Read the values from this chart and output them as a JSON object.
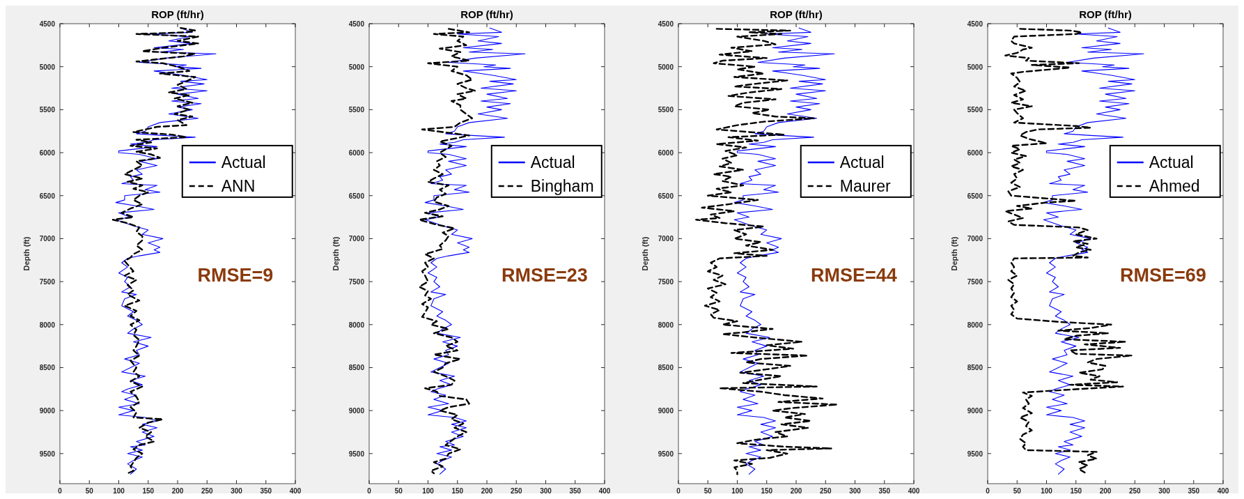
{
  "chart_data": [
    {
      "type": "line",
      "title": "ROP (ft/hr)",
      "ylabel": "Depth (ft)",
      "xlim": [
        0,
        400
      ],
      "xticks": [
        0,
        50,
        100,
        150,
        200,
        250,
        300,
        350,
        400
      ],
      "ylim": [
        9850,
        4500
      ],
      "yticks": [
        4500,
        5000,
        5500,
        6000,
        6500,
        7000,
        7500,
        8000,
        8500,
        9000,
        9500
      ],
      "legend": "right",
      "annotations": [
        "RMSE=9"
      ],
      "series": [
        {
          "name": "Actual",
          "color": "#0000ff",
          "line_style": "solid",
          "x": [
            205,
            225,
            150,
            220,
            185,
            225,
            160,
            210,
            170,
            265,
            180,
            135,
            215,
            195,
            240,
            160,
            190,
            210,
            250,
            205,
            245,
            190,
            250,
            200,
            235,
            190,
            240,
            200,
            225,
            185,
            235,
            170,
            150,
            145,
            130,
            175,
            230,
            160,
            145,
            120,
            165,
            100,
            100,
            135,
            165,
            135,
            165,
            130,
            140,
            120,
            125,
            105,
            165,
            145,
            170,
            110,
            110,
            95,
            130,
            160,
            100,
            120,
            95,
            125,
            150,
            140,
            175,
            150,
            170,
            160,
            170,
            135,
            115,
            105,
            115,
            100,
            115,
            110,
            120,
            105,
            130,
            110,
            105,
            125,
            115,
            130,
            140,
            125,
            115,
            155,
            125,
            150,
            130,
            135,
            110,
            135,
            120,
            105,
            145,
            120,
            140,
            115,
            105,
            130,
            110,
            135,
            100,
            125,
            100,
            145,
            165,
            140,
            165,
            140,
            160,
            130,
            145,
            120,
            140,
            115,
            140,
            125,
            115,
            130,
            120
          ],
          "values": [
            4550,
            4600,
            4620,
            4650,
            4700,
            4730,
            4780,
            4800,
            4830,
            4850,
            4900,
            4950,
            4980,
            5000,
            5020,
            5050,
            5080,
            5100,
            5150,
            5170,
            5200,
            5250,
            5280,
            5320,
            5370,
            5400,
            5430,
            5470,
            5500,
            5550,
            5600,
            5650,
            5700,
            5750,
            5780,
            5800,
            5820,
            5850,
            5880,
            5900,
            5930,
            5980,
            6000,
            6020,
            6070,
            6100,
            6150,
            6200,
            6250,
            6280,
            6320,
            6360,
            6380,
            6430,
            6460,
            6500,
            6550,
            6580,
            6620,
            6660,
            6700,
            6750,
            6780,
            6850,
            6900,
            6950,
            7000,
            7050,
            7100,
            7130,
            7160,
            7200,
            7230,
            7280,
            7330,
            7400,
            7450,
            7500,
            7560,
            7620,
            7650,
            7700,
            7780,
            7850,
            7900,
            7950,
            8000,
            8050,
            8100,
            8150,
            8200,
            8250,
            8300,
            8350,
            8400,
            8450,
            8500,
            8550,
            8600,
            8650,
            8700,
            8750,
            8780,
            8820,
            8870,
            8920,
            8960,
            9000,
            9050,
            9080,
            9120,
            9160,
            9200,
            9250,
            9300,
            9360,
            9400,
            9420,
            9460,
            9500,
            9540,
            9580,
            9620,
            9680,
            9740
          ]
        },
        {
          "name": "ANN",
          "color": "#000000",
          "line_style": "dashed",
          "x": [
            205,
            230,
            215,
            130,
            235,
            200,
            235,
            175,
            140,
            230,
            210,
            130,
            175,
            200,
            220,
            170,
            230,
            215,
            200,
            215,
            185,
            220,
            195,
            225,
            200,
            220,
            195,
            225,
            200,
            215,
            165,
            145,
            125,
            190,
            215,
            130,
            155,
            120,
            165,
            130,
            155,
            170,
            130,
            140,
            125,
            110,
            140,
            115,
            140,
            125,
            150,
            135,
            125,
            140,
            120,
            105,
            125,
            90,
            115,
            135,
            130,
            140,
            140,
            130,
            140,
            125,
            120,
            110,
            115,
            125,
            110,
            130,
            115,
            125,
            115,
            135,
            110,
            130,
            120,
            135,
            120,
            130,
            125,
            135,
            130,
            125,
            135,
            120,
            130,
            125,
            135,
            120,
            140,
            120,
            130,
            135,
            120,
            130,
            125,
            175,
            150,
            135,
            155,
            145,
            160,
            135,
            125,
            140,
            130,
            125,
            120,
            125,
            115
          ],
          "values": [
            4550,
            4580,
            4600,
            4620,
            4650,
            4700,
            4730,
            4780,
            4820,
            4850,
            4880,
            4940,
            4960,
            5000,
            5050,
            5080,
            5120,
            5170,
            5210,
            5260,
            5300,
            5330,
            5370,
            5420,
            5460,
            5500,
            5550,
            5580,
            5620,
            5680,
            5700,
            5730,
            5760,
            5790,
            5820,
            5850,
            5880,
            5920,
            5950,
            5990,
            6020,
            6060,
            6100,
            6150,
            6200,
            6250,
            6300,
            6340,
            6380,
            6420,
            6460,
            6500,
            6550,
            6600,
            6650,
            6700,
            6750,
            6780,
            6820,
            6870,
            6920,
            6970,
            7020,
            7080,
            7130,
            7180,
            7220,
            7260,
            7300,
            7380,
            7430,
            7480,
            7540,
            7600,
            7650,
            7720,
            7780,
            7840,
            7900,
            7950,
            8000,
            8060,
            8120,
            8180,
            8250,
            8300,
            8360,
            8420,
            8500,
            8550,
            8600,
            8660,
            8720,
            8780,
            8840,
            8900,
            8960,
            9020,
            9080,
            9100,
            9140,
            9200,
            9250,
            9300,
            9360,
            9400,
            9450,
            9500,
            9550,
            9600,
            9650,
            9700,
            9730
          ]
        }
      ]
    },
    {
      "type": "line",
      "title": "ROP (ft/hr)",
      "ylabel": "Depth (ft)",
      "xlim": [
        0,
        400
      ],
      "xticks": [
        0,
        50,
        100,
        150,
        200,
        250,
        300,
        350,
        400
      ],
      "ylim": [
        9850,
        4500
      ],
      "yticks": [
        4500,
        5000,
        5500,
        6000,
        6500,
        7000,
        7500,
        8000,
        8500,
        9000,
        9500
      ],
      "legend": "right",
      "annotations": [
        "RMSE=23"
      ],
      "series": [
        {
          "name": "Actual",
          "color": "#0000ff",
          "line_style": "solid",
          "x": [
            205,
            225,
            150,
            220,
            185,
            225,
            160,
            210,
            170,
            265,
            180,
            135,
            215,
            195,
            240,
            160,
            190,
            210,
            250,
            205,
            245,
            190,
            250,
            200,
            235,
            190,
            240,
            200,
            225,
            185,
            235,
            170,
            150,
            145,
            130,
            175,
            230,
            160,
            145,
            120,
            165,
            100,
            100,
            135,
            165,
            135,
            165,
            130,
            140,
            120,
            125,
            105,
            165,
            145,
            170,
            110,
            110,
            95,
            130,
            160,
            100,
            120,
            95,
            125,
            150,
            140,
            175,
            150,
            170,
            160,
            170,
            135,
            115,
            105,
            115,
            100,
            115,
            110,
            120,
            105,
            130,
            110,
            105,
            125,
            115,
            130,
            140,
            125,
            115,
            155,
            125,
            150,
            130,
            135,
            110,
            135,
            120,
            105,
            145,
            120,
            140,
            115,
            105,
            130,
            110,
            135,
            100,
            125,
            100,
            145,
            165,
            140,
            165,
            140,
            160,
            130,
            145,
            120,
            140,
            115,
            140,
            125,
            115,
            130,
            120
          ],
          "values": [
            4550,
            4600,
            4620,
            4650,
            4700,
            4730,
            4780,
            4800,
            4830,
            4850,
            4900,
            4950,
            4980,
            5000,
            5020,
            5050,
            5080,
            5100,
            5150,
            5170,
            5200,
            5250,
            5280,
            5320,
            5370,
            5400,
            5430,
            5470,
            5500,
            5550,
            5600,
            5650,
            5700,
            5750,
            5780,
            5800,
            5820,
            5850,
            5880,
            5900,
            5930,
            5980,
            6000,
            6020,
            6070,
            6100,
            6150,
            6200,
            6250,
            6280,
            6320,
            6360,
            6380,
            6430,
            6460,
            6500,
            6550,
            6580,
            6620,
            6660,
            6700,
            6750,
            6780,
            6850,
            6900,
            6950,
            7000,
            7050,
            7100,
            7130,
            7160,
            7200,
            7230,
            7280,
            7330,
            7400,
            7450,
            7500,
            7560,
            7620,
            7650,
            7700,
            7780,
            7850,
            7900,
            7950,
            8000,
            8050,
            8100,
            8150,
            8200,
            8250,
            8300,
            8350,
            8400,
            8450,
            8500,
            8550,
            8600,
            8650,
            8700,
            8750,
            8780,
            8820,
            8870,
            8920,
            8960,
            9000,
            9050,
            9080,
            9120,
            9160,
            9200,
            9250,
            9300,
            9360,
            9400,
            9420,
            9460,
            9500,
            9540,
            9580,
            9620,
            9680,
            9740
          ]
        },
        {
          "name": "Bingham",
          "color": "#000000",
          "line_style": "dashed",
          "x": [
            135,
            170,
            110,
            160,
            150,
            165,
            120,
            155,
            140,
            170,
            100,
            150,
            140,
            165,
            175,
            150,
            165,
            180,
            150,
            165,
            140,
            155,
            155,
            165,
            175,
            155,
            145,
            90,
            125,
            170,
            150,
            120,
            140,
            130,
            120,
            130,
            115,
            120,
            110,
            125,
            110,
            100,
            135,
            120,
            130,
            115,
            110,
            135,
            120,
            95,
            125,
            85,
            110,
            145,
            125,
            135,
            130,
            120,
            125,
            95,
            110,
            95,
            100,
            90,
            95,
            100,
            85,
            100,
            95,
            105,
            90,
            100,
            95,
            90,
            115,
            105,
            135,
            110,
            140,
            150,
            130,
            150,
            110,
            155,
            130,
            125,
            110,
            130,
            145,
            140,
            95,
            115,
            120,
            165,
            170,
            135,
            120,
            150,
            140,
            160,
            145,
            165,
            150,
            140,
            130,
            155,
            135,
            130,
            110,
            125,
            105,
            110
          ],
          "values": [
            4560,
            4600,
            4620,
            4650,
            4700,
            4750,
            4790,
            4830,
            4880,
            4930,
            4960,
            5000,
            5050,
            5100,
            5150,
            5200,
            5250,
            5280,
            5320,
            5370,
            5400,
            5450,
            5500,
            5550,
            5600,
            5650,
            5700,
            5730,
            5760,
            5800,
            5830,
            5870,
            5920,
            5960,
            6000,
            6050,
            6100,
            6150,
            6200,
            6250,
            6300,
            6340,
            6380,
            6430,
            6480,
            6520,
            6570,
            6620,
            6660,
            6700,
            6740,
            6780,
            6830,
            6880,
            6930,
            6970,
            7020,
            7080,
            7120,
            7180,
            7230,
            7280,
            7330,
            7380,
            7430,
            7500,
            7560,
            7610,
            7660,
            7700,
            7760,
            7800,
            7860,
            7910,
            7960,
            8000,
            8050,
            8100,
            8150,
            8200,
            8250,
            8300,
            8350,
            8400,
            8450,
            8500,
            8550,
            8600,
            8650,
            8700,
            8740,
            8780,
            8830,
            8870,
            8920,
            8960,
            9000,
            9050,
            9100,
            9150,
            9200,
            9250,
            9300,
            9350,
            9400,
            9450,
            9500,
            9560,
            9600,
            9650,
            9700,
            9730
          ]
        }
      ]
    },
    {
      "type": "line",
      "title": "ROP (ft/hr)",
      "ylabel": "Depth (ft)",
      "xlim": [
        0,
        400
      ],
      "xticks": [
        0,
        50,
        100,
        150,
        200,
        250,
        300,
        350,
        400
      ],
      "ylim": [
        9850,
        4500
      ],
      "yticks": [
        4500,
        5000,
        5500,
        6000,
        6500,
        7000,
        7500,
        8000,
        8500,
        9000,
        9500
      ],
      "legend": "right",
      "annotations": [
        "RMSE=44"
      ],
      "series": [
        {
          "name": "Actual",
          "color": "#0000ff",
          "line_style": "solid",
          "x": [
            205,
            225,
            150,
            220,
            185,
            225,
            160,
            210,
            170,
            265,
            180,
            135,
            215,
            195,
            240,
            160,
            190,
            210,
            250,
            205,
            245,
            190,
            250,
            200,
            235,
            190,
            240,
            200,
            225,
            185,
            235,
            170,
            150,
            145,
            130,
            175,
            230,
            160,
            145,
            120,
            165,
            100,
            100,
            135,
            165,
            135,
            165,
            130,
            140,
            120,
            125,
            105,
            165,
            145,
            170,
            110,
            110,
            95,
            130,
            160,
            100,
            120,
            95,
            125,
            150,
            140,
            175,
            150,
            170,
            160,
            170,
            135,
            115,
            105,
            115,
            100,
            115,
            110,
            120,
            105,
            130,
            110,
            105,
            125,
            115,
            130,
            140,
            125,
            115,
            155,
            125,
            150,
            130,
            135,
            110,
            135,
            120,
            105,
            145,
            120,
            140,
            115,
            105,
            130,
            110,
            135,
            100,
            125,
            100,
            145,
            165,
            140,
            165,
            140,
            160,
            130,
            145,
            120,
            140,
            115,
            140,
            125,
            115,
            130,
            120
          ],
          "values": [
            4550,
            4600,
            4620,
            4650,
            4700,
            4730,
            4780,
            4800,
            4830,
            4850,
            4900,
            4950,
            4980,
            5000,
            5020,
            5050,
            5080,
            5100,
            5150,
            5170,
            5200,
            5250,
            5280,
            5320,
            5370,
            5400,
            5430,
            5470,
            5500,
            5550,
            5600,
            5650,
            5700,
            5750,
            5780,
            5800,
            5820,
            5850,
            5880,
            5900,
            5930,
            5980,
            6000,
            6020,
            6070,
            6100,
            6150,
            6200,
            6250,
            6280,
            6320,
            6360,
            6380,
            6430,
            6460,
            6500,
            6550,
            6580,
            6620,
            6660,
            6700,
            6750,
            6780,
            6850,
            6900,
            6950,
            7000,
            7050,
            7100,
            7130,
            7160,
            7200,
            7230,
            7280,
            7330,
            7400,
            7450,
            7500,
            7560,
            7620,
            7650,
            7700,
            7780,
            7850,
            7900,
            7950,
            8000,
            8050,
            8100,
            8150,
            8200,
            8250,
            8300,
            8350,
            8400,
            8450,
            8500,
            8550,
            8600,
            8650,
            8700,
            8750,
            8780,
            8820,
            8870,
            8920,
            8960,
            9000,
            9050,
            9080,
            9120,
            9160,
            9200,
            9250,
            9300,
            9360,
            9400,
            9420,
            9460,
            9500,
            9540,
            9580,
            9620,
            9680,
            9740
          ]
        },
        {
          "name": "Maurer",
          "color": "#000000",
          "line_style": "dashed",
          "x": [
            65,
            190,
            120,
            175,
            100,
            145,
            165,
            90,
            125,
            70,
            150,
            75,
            60,
            130,
            100,
            145,
            95,
            185,
            130,
            95,
            175,
            120,
            85,
            165,
            110,
            95,
            155,
            125,
            165,
            230,
            145,
            100,
            65,
            120,
            180,
            85,
            135,
            65,
            115,
            80,
            100,
            75,
            90,
            70,
            110,
            60,
            90,
            75,
            110,
            65,
            90,
            50,
            135,
            85,
            40,
            95,
            55,
            70,
            30,
            80,
            145,
            95,
            115,
            95,
            140,
            115,
            160,
            95,
            150,
            70,
            55,
            65,
            50,
            75,
            60,
            80,
            50,
            65,
            55,
            70,
            45,
            70,
            55,
            60,
            100,
            75,
            160,
            110,
            75,
            130,
            210,
            150,
            195,
            90,
            220,
            140,
            115,
            190,
            150,
            105,
            175,
            140,
            110,
            235,
            70,
            140,
            180,
            245,
            170,
            270,
            195,
            160,
            215,
            180,
            225,
            175,
            220,
            165,
            185,
            130,
            100,
            180,
            260,
            150,
            185,
            155,
            95,
            125,
            95,
            100,
            100
          ],
          "values": [
            4560,
            4580,
            4600,
            4620,
            4650,
            4700,
            4740,
            4780,
            4820,
            4860,
            4900,
            4930,
            4960,
            5000,
            5030,
            5080,
            5120,
            5160,
            5200,
            5230,
            5260,
            5300,
            5340,
            5380,
            5420,
            5460,
            5500,
            5540,
            5580,
            5600,
            5640,
            5680,
            5730,
            5760,
            5790,
            5820,
            5860,
            5900,
            5940,
            5980,
            6030,
            6070,
            6120,
            6160,
            6200,
            6250,
            6280,
            6330,
            6380,
            6420,
            6460,
            6500,
            6550,
            6600,
            6640,
            6680,
            6720,
            6760,
            6780,
            6820,
            6860,
            6900,
            6950,
            7000,
            7040,
            7080,
            7130,
            7170,
            7200,
            7230,
            7280,
            7330,
            7380,
            7430,
            7480,
            7530,
            7580,
            7630,
            7680,
            7730,
            7780,
            7830,
            7880,
            7920,
            7960,
            8000,
            8050,
            8090,
            8110,
            8150,
            8200,
            8240,
            8280,
            8330,
            8360,
            8400,
            8440,
            8480,
            8520,
            8560,
            8600,
            8640,
            8680,
            8720,
            8740,
            8780,
            8820,
            8860,
            8900,
            8930,
            8970,
            9000,
            9040,
            9080,
            9120,
            9160,
            9200,
            9250,
            9300,
            9340,
            9380,
            9420,
            9440,
            9460,
            9500,
            9550,
            9580,
            9620,
            9660,
            9700,
            9740
          ]
        }
      ]
    },
    {
      "type": "line",
      "title": "ROP (ft/hr)",
      "ylabel": "Depth (ft)",
      "xlim": [
        0,
        400
      ],
      "xticks": [
        0,
        50,
        100,
        150,
        200,
        250,
        300,
        350,
        400
      ],
      "ylim": [
        9850,
        4500
      ],
      "yticks": [
        4500,
        5000,
        5500,
        6000,
        6500,
        7000,
        7500,
        8000,
        8500,
        9000,
        9500
      ],
      "legend": "right",
      "annotations": [
        "RMSE=69"
      ],
      "series": [
        {
          "name": "Actual",
          "color": "#0000ff",
          "line_style": "solid",
          "x": [
            205,
            225,
            150,
            220,
            185,
            225,
            160,
            210,
            170,
            265,
            180,
            135,
            215,
            195,
            240,
            160,
            190,
            210,
            250,
            205,
            245,
            190,
            250,
            200,
            235,
            190,
            240,
            200,
            225,
            185,
            235,
            170,
            150,
            145,
            130,
            175,
            230,
            160,
            145,
            120,
            165,
            100,
            100,
            135,
            165,
            135,
            165,
            130,
            140,
            120,
            125,
            105,
            165,
            145,
            170,
            110,
            110,
            95,
            130,
            160,
            100,
            120,
            95,
            125,
            150,
            140,
            175,
            150,
            170,
            160,
            170,
            135,
            115,
            105,
            115,
            100,
            115,
            110,
            120,
            105,
            130,
            110,
            105,
            125,
            115,
            130,
            140,
            125,
            115,
            155,
            125,
            150,
            130,
            135,
            110,
            135,
            120,
            105,
            145,
            120,
            140,
            115,
            105,
            130,
            110,
            135,
            100,
            125,
            100,
            145,
            165,
            140,
            165,
            140,
            160,
            130,
            145,
            120,
            140,
            115,
            140,
            125,
            115,
            130,
            120
          ],
          "values": [
            4550,
            4600,
            4620,
            4650,
            4700,
            4730,
            4780,
            4800,
            4830,
            4850,
            4900,
            4950,
            4980,
            5000,
            5020,
            5050,
            5080,
            5100,
            5150,
            5170,
            5200,
            5250,
            5280,
            5320,
            5370,
            5400,
            5430,
            5470,
            5500,
            5550,
            5600,
            5650,
            5700,
            5750,
            5780,
            5800,
            5820,
            5850,
            5880,
            5900,
            5930,
            5980,
            6000,
            6020,
            6070,
            6100,
            6150,
            6200,
            6250,
            6280,
            6320,
            6360,
            6380,
            6430,
            6460,
            6500,
            6550,
            6580,
            6620,
            6660,
            6700,
            6750,
            6780,
            6850,
            6900,
            6950,
            7000,
            7050,
            7100,
            7130,
            7160,
            7200,
            7230,
            7280,
            7330,
            7400,
            7450,
            7500,
            7560,
            7620,
            7650,
            7700,
            7780,
            7850,
            7900,
            7950,
            8000,
            8050,
            8100,
            8150,
            8200,
            8250,
            8300,
            8350,
            8400,
            8450,
            8500,
            8550,
            8600,
            8650,
            8700,
            8750,
            8780,
            8820,
            8870,
            8920,
            8960,
            9000,
            9050,
            9080,
            9120,
            9160,
            9200,
            9250,
            9300,
            9360,
            9400,
            9420,
            9460,
            9500,
            9540,
            9580,
            9620,
            9680,
            9740
          ]
        },
        {
          "name": "Ahmed",
          "color": "#000000",
          "line_style": "dashed",
          "x": [
            55,
            140,
            160,
            150,
            45,
            40,
            45,
            75,
            60,
            50,
            30,
            70,
            65,
            155,
            75,
            140,
            110,
            60,
            40,
            50,
            55,
            45,
            65,
            45,
            60,
            40,
            75,
            45,
            50,
            60,
            45,
            150,
            175,
            85,
            65,
            55,
            70,
            100,
            40,
            55,
            40,
            65,
            45,
            55,
            40,
            60,
            45,
            50,
            40,
            55,
            35,
            40,
            150,
            100,
            50,
            75,
            30,
            45,
            60,
            35,
            45,
            155,
            170,
            150,
            185,
            145,
            170,
            150,
            175,
            155,
            145,
            170,
            45,
            40,
            45,
            40,
            50,
            35,
            45,
            40,
            45,
            40,
            50,
            40,
            45,
            40,
            50,
            125,
            210,
            175,
            120,
            205,
            150,
            130,
            235,
            165,
            225,
            140,
            150,
            245,
            185,
            170,
            200,
            195,
            155,
            190,
            175,
            220,
            140,
            230,
            130,
            60,
            75,
            65,
            70,
            60,
            75,
            55,
            70,
            65,
            75,
            60,
            55,
            65,
            60,
            65,
            185,
            170,
            185,
            155,
            170,
            155,
            165
          ],
          "values": [
            4560,
            4580,
            4600,
            4620,
            4650,
            4700,
            4730,
            4780,
            4800,
            4840,
            4870,
            4900,
            4930,
            4960,
            4980,
            5010,
            5030,
            5060,
            5080,
            5130,
            5180,
            5230,
            5280,
            5330,
            5380,
            5420,
            5460,
            5500,
            5540,
            5600,
            5650,
            5690,
            5710,
            5730,
            5760,
            5800,
            5840,
            5890,
            5920,
            5960,
            6000,
            6040,
            6080,
            6120,
            6160,
            6200,
            6250,
            6300,
            6350,
            6400,
            6450,
            6500,
            6560,
            6580,
            6620,
            6650,
            6680,
            6720,
            6760,
            6800,
            6840,
            6870,
            6900,
            6950,
            7000,
            7030,
            7060,
            7100,
            7130,
            7160,
            7200,
            7220,
            7230,
            7280,
            7330,
            7380,
            7430,
            7480,
            7530,
            7580,
            7630,
            7680,
            7730,
            7780,
            7830,
            7880,
            7930,
            7970,
            8000,
            8040,
            8070,
            8100,
            8130,
            8170,
            8200,
            8230,
            8270,
            8300,
            8340,
            8360,
            8400,
            8440,
            8480,
            8520,
            8560,
            8600,
            8640,
            8670,
            8700,
            8720,
            8760,
            8790,
            8830,
            8870,
            8920,
            8970,
            9030,
            9080,
            9130,
            9180,
            9230,
            9280,
            9330,
            9380,
            9420,
            9460,
            9480,
            9520,
            9560,
            9600,
            9640,
            9680,
            9720
          ]
        }
      ]
    }
  ]
}
